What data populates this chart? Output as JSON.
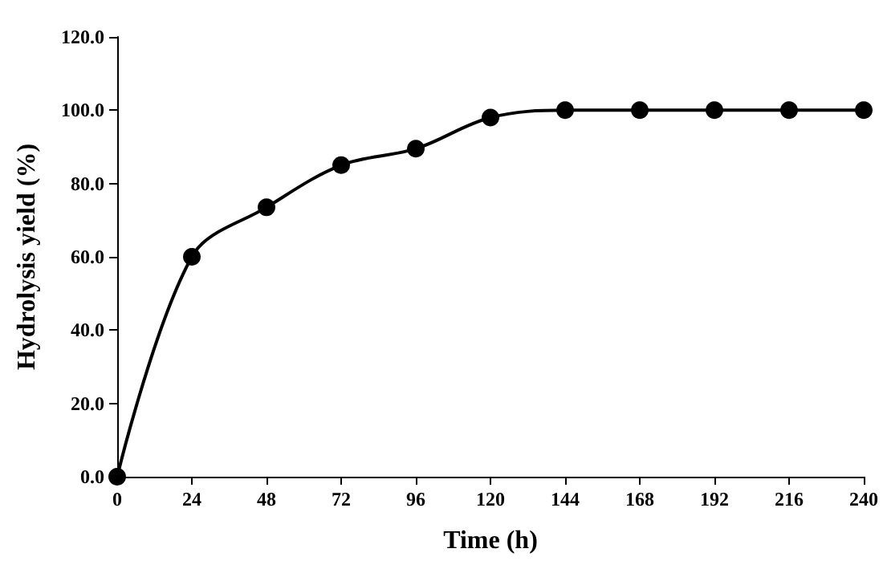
{
  "chart_data": {
    "type": "line",
    "xlabel": "Time (h)",
    "ylabel": "Hydrolysis yield (%)",
    "x": [
      0,
      24,
      48,
      72,
      96,
      120,
      144,
      168,
      192,
      216,
      240
    ],
    "series": [
      {
        "color": "#000000",
        "values": [
          0,
          60,
          73.5,
          85,
          89.5,
          98,
          100,
          100,
          100,
          100,
          100
        ]
      }
    ],
    "xlim": [
      0,
      240
    ],
    "xticks": [
      0,
      24,
      48,
      72,
      96,
      120,
      144,
      168,
      192,
      216,
      240
    ],
    "ylim": [
      0,
      120
    ],
    "yticks": [
      {
        "value": 0,
        "label": "0.0"
      },
      {
        "value": 20,
        "label": "20.0"
      },
      {
        "value": 40,
        "label": "40.0"
      },
      {
        "value": 60,
        "label": "60.0"
      },
      {
        "value": 80,
        "label": "80.0"
      },
      {
        "value": 100,
        "label": "100.0"
      },
      {
        "value": 120,
        "label": "120.0"
      }
    ],
    "grid": false,
    "marker": "circle",
    "line_style": "solid"
  }
}
